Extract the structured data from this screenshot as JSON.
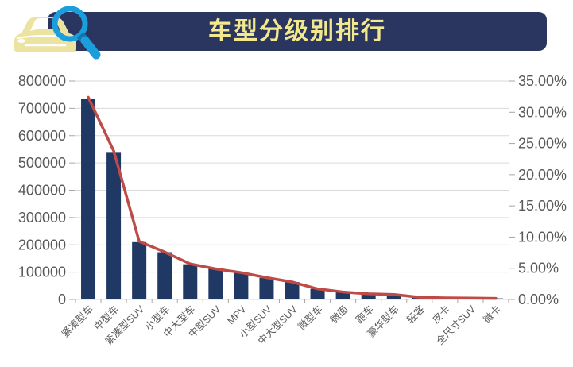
{
  "header": {
    "title": "车型分级别排行"
  },
  "colors": {
    "header_bg": "#2A3560",
    "title_text": "#F2E88E",
    "bar": "#1F3864",
    "line": "#BF4B47",
    "grid": "#D9D9D9",
    "tick": "#A6A6A6",
    "axis_text": "#595959",
    "icon_car": "#EDE3A1",
    "icon_glass": "#1C9EDD",
    "icon_glass_dark": "#0F76AC",
    "background": "#FFFFFF"
  },
  "chart_data": {
    "type": "bar",
    "title": "车型分级别排行",
    "categories": [
      "紧凑型车",
      "中型车",
      "紧凑型SUV",
      "小型车",
      "中大型车",
      "中型SUV",
      "MPV",
      "小型SUV",
      "中大型SUV",
      "微型车",
      "微面",
      "跑车",
      "豪华型车",
      "轻客",
      "皮卡",
      "全尺寸SUV",
      "微卡"
    ],
    "series": [
      {
        "name": "bar-series",
        "type": "bar",
        "axis": "left",
        "values": [
          735000,
          540000,
          210000,
          173000,
          129000,
          112000,
          98000,
          79000,
          64000,
          39000,
          28000,
          20000,
          18000,
          8000,
          6000,
          5000,
          4000
        ]
      },
      {
        "name": "line-series",
        "type": "line",
        "axis": "right",
        "values": [
          32.4,
          23.8,
          9.3,
          7.6,
          5.7,
          4.9,
          4.3,
          3.5,
          2.8,
          1.7,
          1.2,
          0.9,
          0.8,
          0.35,
          0.26,
          0.22,
          0.18
        ]
      }
    ],
    "left_axis": {
      "min": 0,
      "max": 800000,
      "step": 100000,
      "tick_labels": [
        "0",
        "100000",
        "200000",
        "300000",
        "400000",
        "500000",
        "600000",
        "700000",
        "800000"
      ]
    },
    "right_axis": {
      "min": 0,
      "max": 35,
      "step": 5,
      "tick_labels": [
        "0.00%",
        "5.00%",
        "10.00%",
        "15.00%",
        "20.00%",
        "25.00%",
        "30.00%",
        "35.00%"
      ]
    },
    "grid": true,
    "legend_position": "none",
    "x_label_rotation": -45
  }
}
